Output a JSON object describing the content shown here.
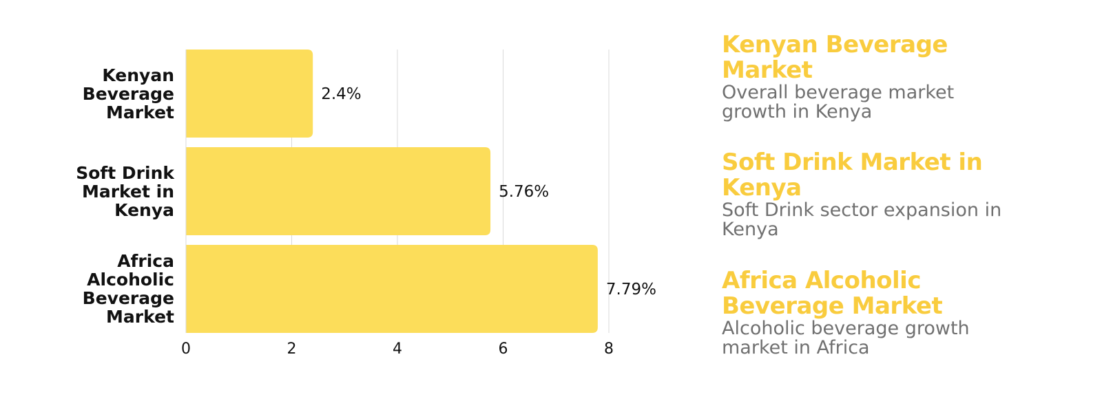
{
  "colors": {
    "bar": "#FCDD5A",
    "legend_title": "#F9CC3E",
    "legend_desc": "#707070",
    "grid": "#D9D9D9",
    "text": "#111111"
  },
  "chart_data": {
    "type": "bar",
    "orientation": "horizontal",
    "categories": [
      "Kenyan Beverage Market",
      "Soft Drink Market in Kenya",
      "Africa Alcoholic Beverage Market"
    ],
    "category_lines": [
      [
        "Kenyan",
        "Beverage",
        "Market"
      ],
      [
        "Soft Drink",
        "Market in",
        "Kenya"
      ],
      [
        "Africa",
        "Alcoholic",
        "Beverage",
        "Market"
      ]
    ],
    "values": [
      2.4,
      5.76,
      7.79
    ],
    "value_labels": [
      "2.4%",
      "5.76%",
      "7.79%"
    ],
    "xlim": [
      0,
      8
    ],
    "xticks": [
      "0",
      "2",
      "4",
      "6",
      "8"
    ],
    "grid": true,
    "title": "",
    "xlabel": "",
    "ylabel": ""
  },
  "legend": [
    {
      "title_lines": [
        "Kenyan Beverage",
        "Market"
      ],
      "desc_lines": [
        "Overall beverage market",
        "growth in Kenya"
      ]
    },
    {
      "title_lines": [
        "Soft Drink Market in",
        "Kenya"
      ],
      "desc_lines": [
        "Soft Drink sector expansion in",
        "Kenya"
      ]
    },
    {
      "title_lines": [
        "Africa Alcoholic",
        "Beverage Market"
      ],
      "desc_lines": [
        "Alcoholic beverage growth",
        "market in Africa"
      ]
    }
  ]
}
